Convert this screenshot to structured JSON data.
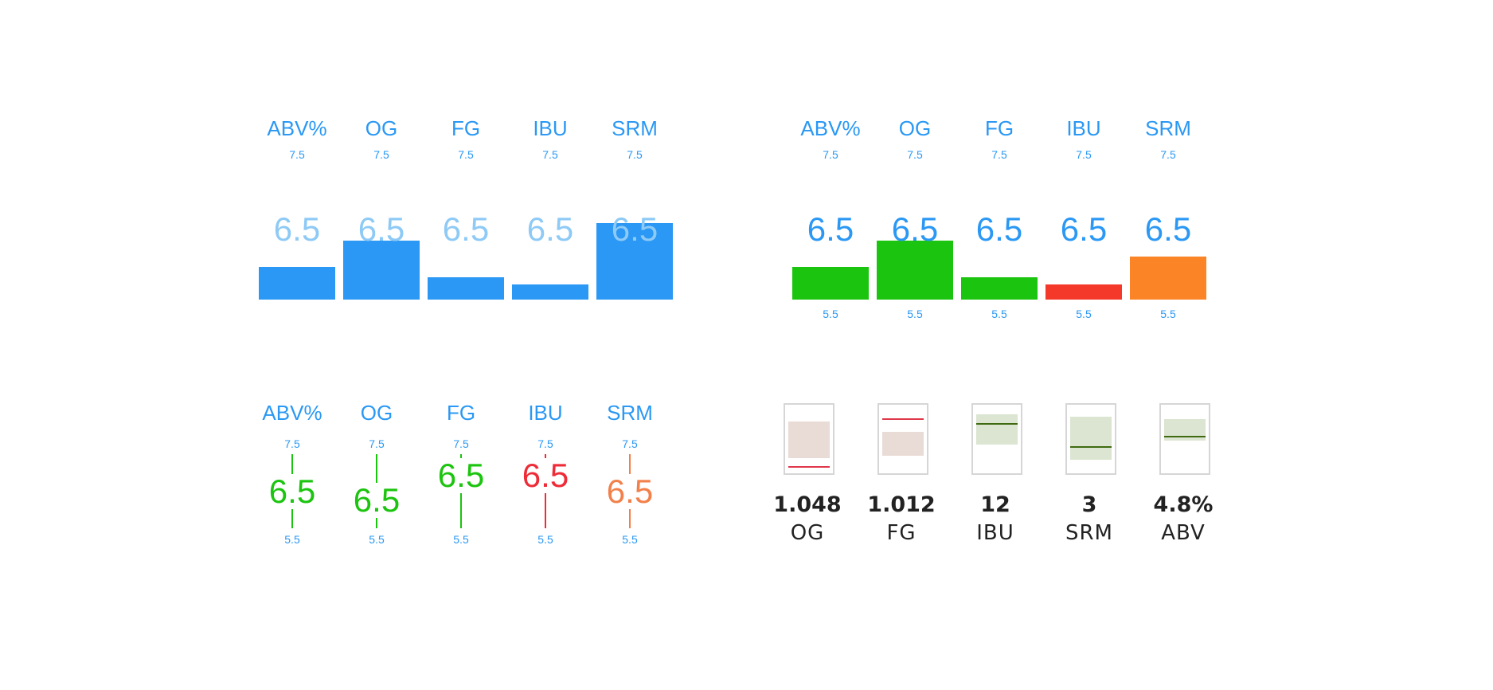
{
  "colors": {
    "blue": "#2a98f4",
    "light_blue": "#8ecaf6",
    "green": "#1bc40e",
    "red": "#f4392b",
    "red_text": "#ee2c38",
    "orange": "#fb8427",
    "orange_text": "#f2804a",
    "pink_fill": "#e9dbd5",
    "pink_line": "#e0374a",
    "olive_fill": "#dbe5d1",
    "olive_line": "#3f6a12"
  },
  "panel_a": {
    "items": [
      {
        "label": "ABV%",
        "max": "7.5",
        "value": "6.5",
        "level": 0.3
      },
      {
        "label": "OG",
        "max": "7.5",
        "value": "6.5",
        "level": 0.55
      },
      {
        "label": "FG",
        "max": "7.5",
        "value": "6.5",
        "level": 0.21
      },
      {
        "label": "IBU",
        "max": "7.5",
        "value": "6.5",
        "level": 0.14
      },
      {
        "label": "SRM",
        "max": "7.5",
        "value": "6.5",
        "level": 0.71
      }
    ]
  },
  "panel_b": {
    "items": [
      {
        "label": "ABV%",
        "max": "7.5",
        "value": "6.5",
        "min": "5.5",
        "level": 0.3,
        "status": "green"
      },
      {
        "label": "OG",
        "max": "7.5",
        "value": "6.5",
        "min": "5.5",
        "level": 0.55,
        "status": "green"
      },
      {
        "label": "FG",
        "max": "7.5",
        "value": "6.5",
        "min": "5.5",
        "level": 0.21,
        "status": "green"
      },
      {
        "label": "IBU",
        "max": "7.5",
        "value": "6.5",
        "min": "5.5",
        "level": 0.14,
        "status": "red"
      },
      {
        "label": "SRM",
        "max": "7.5",
        "value": "6.5",
        "min": "5.5",
        "level": 0.4,
        "status": "orange"
      }
    ]
  },
  "panel_c": {
    "items": [
      {
        "label": "ABV%",
        "max": "7.5",
        "value": "6.5",
        "min": "5.5",
        "status": "green",
        "position": 0.5
      },
      {
        "label": "OG",
        "max": "7.5",
        "value": "6.5",
        "min": "5.5",
        "status": "green",
        "position": 0.62
      },
      {
        "label": "FG",
        "max": "7.5",
        "value": "6.5",
        "min": "5.5",
        "status": "green",
        "position": 0.29
      },
      {
        "label": "IBU",
        "max": "7.5",
        "value": "6.5",
        "min": "5.5",
        "status": "red",
        "position": 0.29
      },
      {
        "label": "SRM",
        "max": "7.5",
        "value": "6.5",
        "min": "5.5",
        "status": "orange",
        "position": 0.5
      }
    ]
  },
  "panel_d": {
    "items": [
      {
        "value": "1.048",
        "name": "OG",
        "tone": "pink",
        "range_top": 0.24,
        "range_bottom": 0.77,
        "marker": 0.9
      },
      {
        "value": "1.012",
        "name": "FG",
        "tone": "pink",
        "range_top": 0.4,
        "range_bottom": 0.75,
        "marker": 0.2
      },
      {
        "value": "12",
        "name": "IBU",
        "tone": "olive",
        "range_top": 0.14,
        "range_bottom": 0.58,
        "marker": 0.27
      },
      {
        "value": "3",
        "name": "SRM",
        "tone": "olive",
        "range_top": 0.17,
        "range_bottom": 0.8,
        "marker": 0.6
      },
      {
        "value": "4.8%",
        "name": "ABV",
        "tone": "olive",
        "range_top": 0.21,
        "range_bottom": 0.52,
        "marker": 0.45
      }
    ]
  }
}
